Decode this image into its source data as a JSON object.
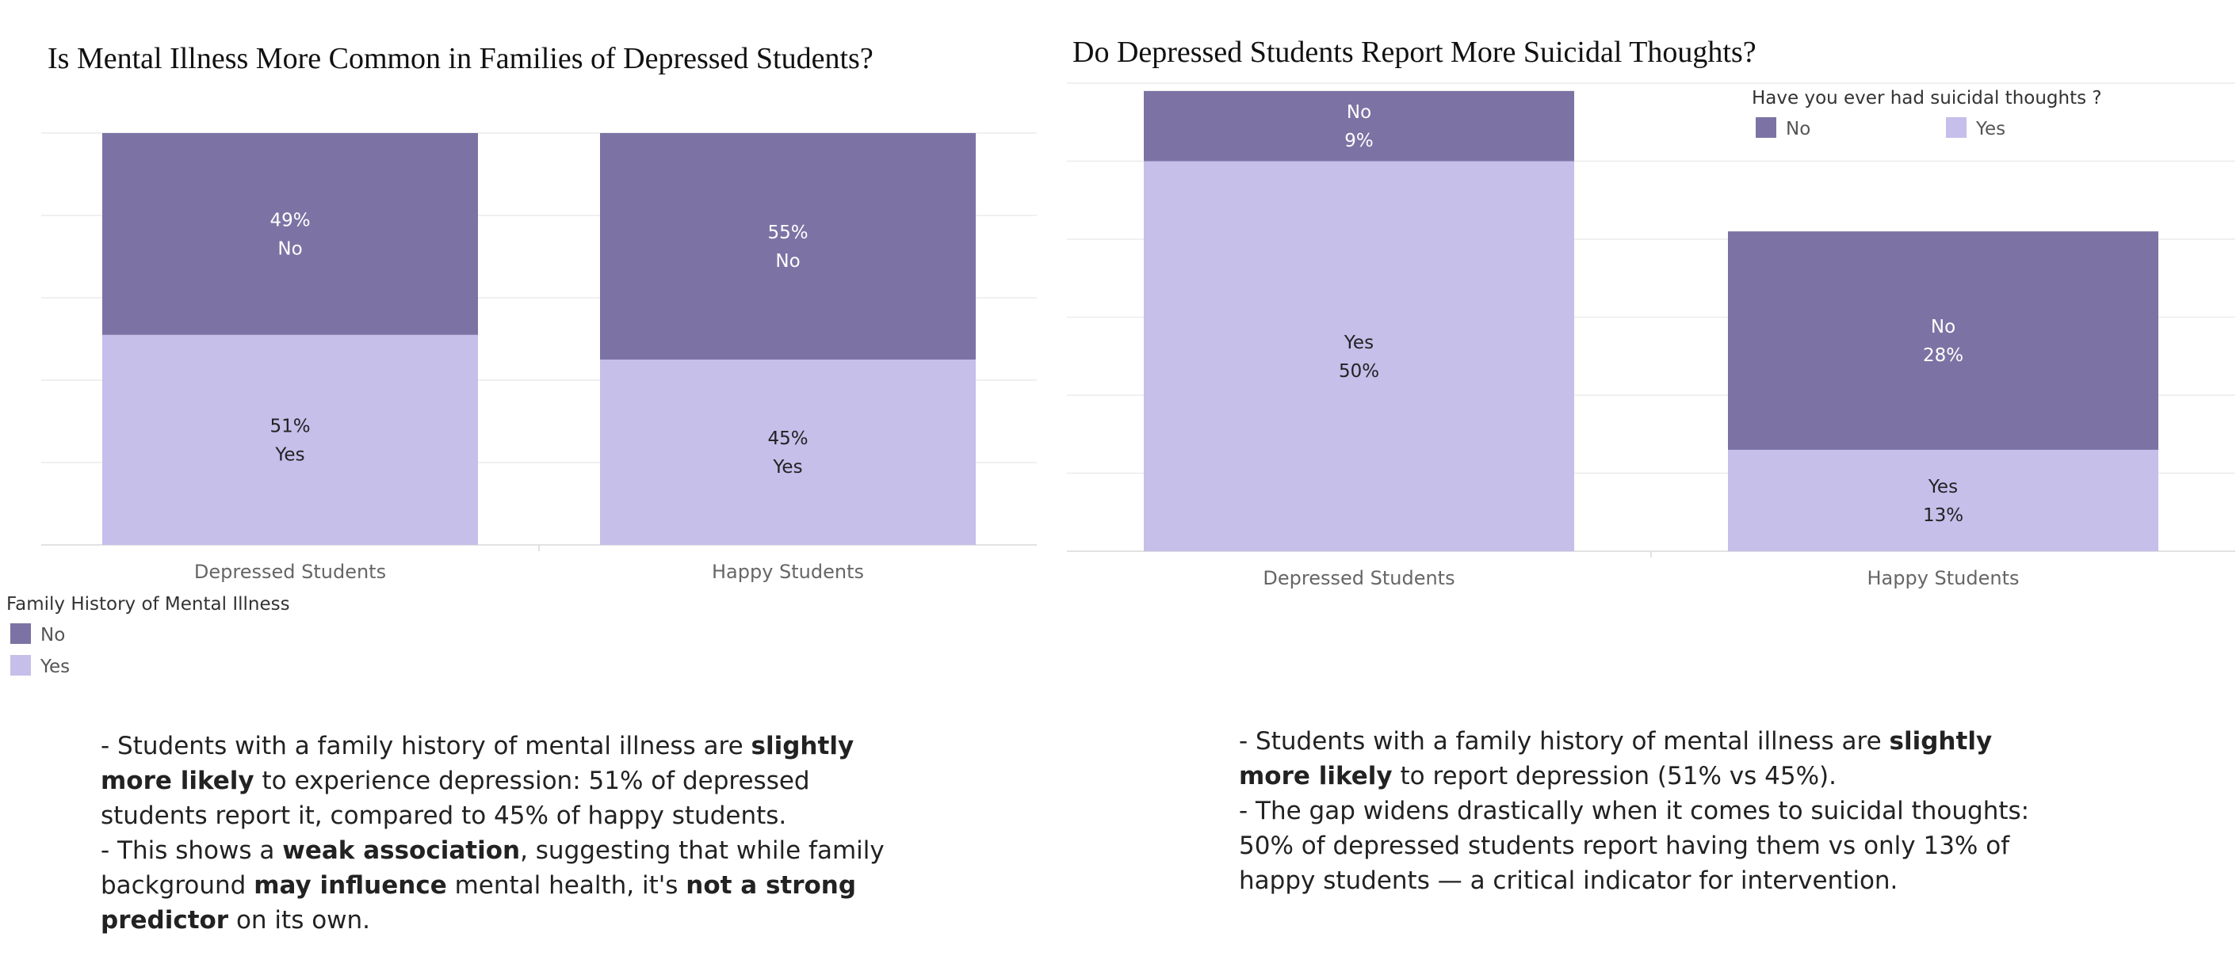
{
  "chart_data": [
    {
      "type": "bar",
      "stacked": true,
      "title": "Is Mental Illness More Common in Families of Depressed Students?",
      "categories": [
        "Depressed Students",
        "Happy Students"
      ],
      "series": [
        {
          "name": "Yes",
          "values": [
            51,
            45
          ],
          "labels": [
            "51%\nYes",
            "45%\nYes"
          ]
        },
        {
          "name": "No",
          "values": [
            49,
            55
          ],
          "labels": [
            "49%\nNo",
            "55%\nNo"
          ]
        }
      ],
      "ylim": [
        0,
        100
      ],
      "grid": true,
      "legend": {
        "title": "Family History of Mental Illness",
        "entries": [
          "No",
          "Yes"
        ],
        "placement": "bottom-left"
      }
    },
    {
      "type": "bar",
      "stacked": true,
      "title": "Do Depressed Students Report More Suicidal Thoughts?",
      "categories": [
        "Depressed Students",
        "Happy Students"
      ],
      "series": [
        {
          "name": "Yes",
          "values": [
            50,
            13
          ],
          "labels": [
            "Yes\n50%",
            "Yes\n13%"
          ]
        },
        {
          "name": "No",
          "values": [
            9,
            28
          ],
          "labels": [
            "No\n9%",
            "No\n28%"
          ]
        }
      ],
      "ylim": [
        0,
        60
      ],
      "grid": true,
      "legend": {
        "title": "Have you ever had suicidal thoughts ?",
        "entries": [
          "No",
          "Yes"
        ],
        "placement": "top-right"
      }
    }
  ],
  "colors": {
    "No": "#7c73a4",
    "Yes": "#c5bfea",
    "label_on_dark": "#ffffff",
    "label_on_light": "#222222"
  },
  "notes": [
    {
      "paragraphs": [
        [
          {
            "t": "- Students with a family history of mental illness are "
          },
          {
            "t": "slightly more likely",
            "b": true
          },
          {
            "t": " to experience depression: 51% of depressed students report it, compared to 45% of happy students."
          }
        ],
        [
          {
            "t": "- This shows a "
          },
          {
            "t": "weak association",
            "b": true
          },
          {
            "t": ", suggesting that while family background "
          },
          {
            "t": "may influence",
            "b": true
          },
          {
            "t": " mental health, it's "
          },
          {
            "t": "not a strong predictor",
            "b": true
          },
          {
            "t": " on its own."
          }
        ]
      ]
    },
    {
      "paragraphs": [
        [
          {
            "t": "- Students with a family history of mental illness are "
          },
          {
            "t": "slightly more likely",
            "b": true
          },
          {
            "t": " to report depression (51% vs 45%)."
          }
        ],
        [
          {
            "t": "- The gap widens drastically when it comes to suicidal thoughts: 50% of depressed students report having them vs only 13% of happy students — a critical indicator for intervention."
          }
        ]
      ]
    }
  ]
}
